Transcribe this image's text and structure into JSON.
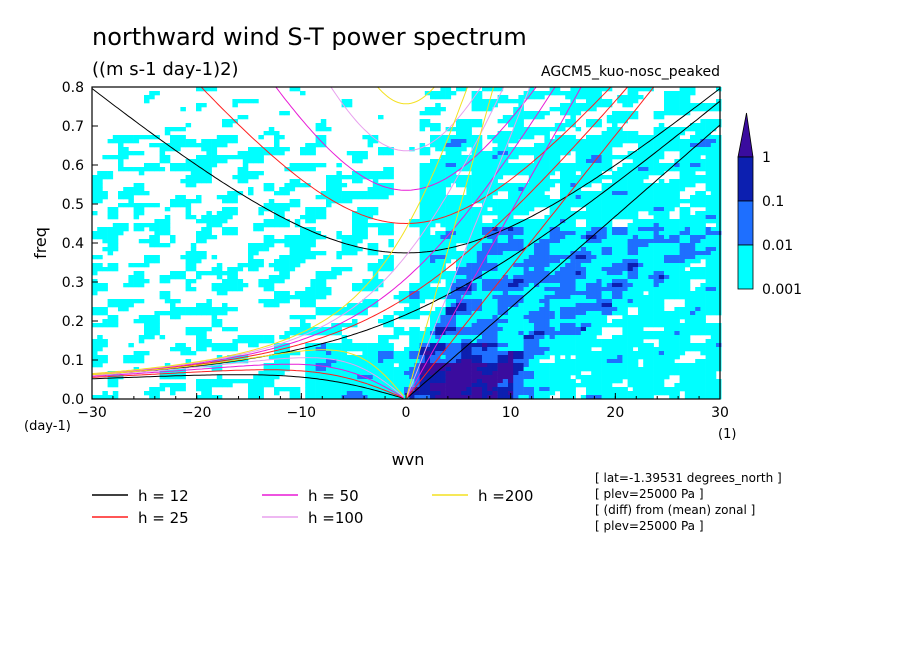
{
  "title": "northward wind S-T power spectrum",
  "units": "((m s-1 day-1)2)",
  "run_label": "AGCM5_kuo-nosc_peaked",
  "chart_data": {
    "type": "heatmap",
    "xlabel": "wvn",
    "ylabel": "freq",
    "x_unit_label": "(1)",
    "y_unit_label": "(day-1)",
    "xlim": [
      -30,
      30
    ],
    "ylim": [
      0,
      0.8
    ],
    "xticks": [
      "−30",
      "−20",
      "−10",
      "0",
      "10",
      "20",
      "30"
    ],
    "yticks": [
      "0.0",
      "0.1",
      "0.2",
      "0.3",
      "0.4",
      "0.5",
      "0.6",
      "0.7",
      "0.8"
    ],
    "grid": false,
    "colorbar": {
      "levels": [
        "0.001",
        "0.01",
        "0.1",
        "1"
      ],
      "colors": [
        "#00ffff",
        "#1e6fff",
        "#0c1fb0",
        "#3a0c9e"
      ]
    },
    "curves": [
      {
        "label": "h = 12",
        "color": "#000000"
      },
      {
        "label": "h = 25",
        "color": "#ff1f1f"
      },
      {
        "label": "h = 50",
        "color": "#e81ad6"
      },
      {
        "label": "h =100",
        "color": "#e8a0ee"
      },
      {
        "label": "h =200",
        "color": "#f4e020"
      }
    ]
  },
  "info_lines": [
    "[ lat=-1.39531 degrees_north ]",
    "[ plev=25000 Pa ]",
    "[ (diff) from (mean) zonal ]",
    "[ plev=25000 Pa ]"
  ]
}
